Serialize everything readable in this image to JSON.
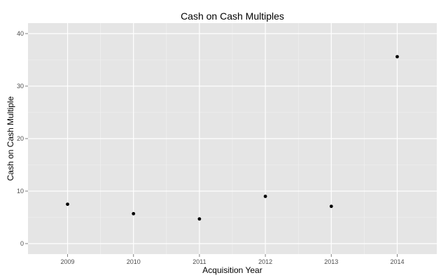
{
  "chart_data": {
    "type": "scatter",
    "title": "Cash on Cash Multiples",
    "xlabel": "Acquisition Year",
    "ylabel": "Cash on Cash Multiple",
    "x_ticks": [
      "2009",
      "2010",
      "2011",
      "2012",
      "2013",
      "2014"
    ],
    "y_ticks": [
      "0",
      "10",
      "20",
      "30",
      "40"
    ],
    "y_tick_values": [
      0,
      10,
      20,
      30,
      40
    ],
    "ylim": [
      -2,
      42
    ],
    "grid": true,
    "colors": {
      "panel": "#e5e5e5",
      "grid_major": "#ffffff",
      "grid_minor": "#f2f2f2",
      "point": "#000000"
    },
    "series": [
      {
        "x": [
          "2009",
          "2010",
          "2011",
          "2012",
          "2013",
          "2014"
        ],
        "y": [
          7.5,
          5.7,
          4.7,
          9.0,
          7.1,
          35.6
        ]
      }
    ]
  }
}
